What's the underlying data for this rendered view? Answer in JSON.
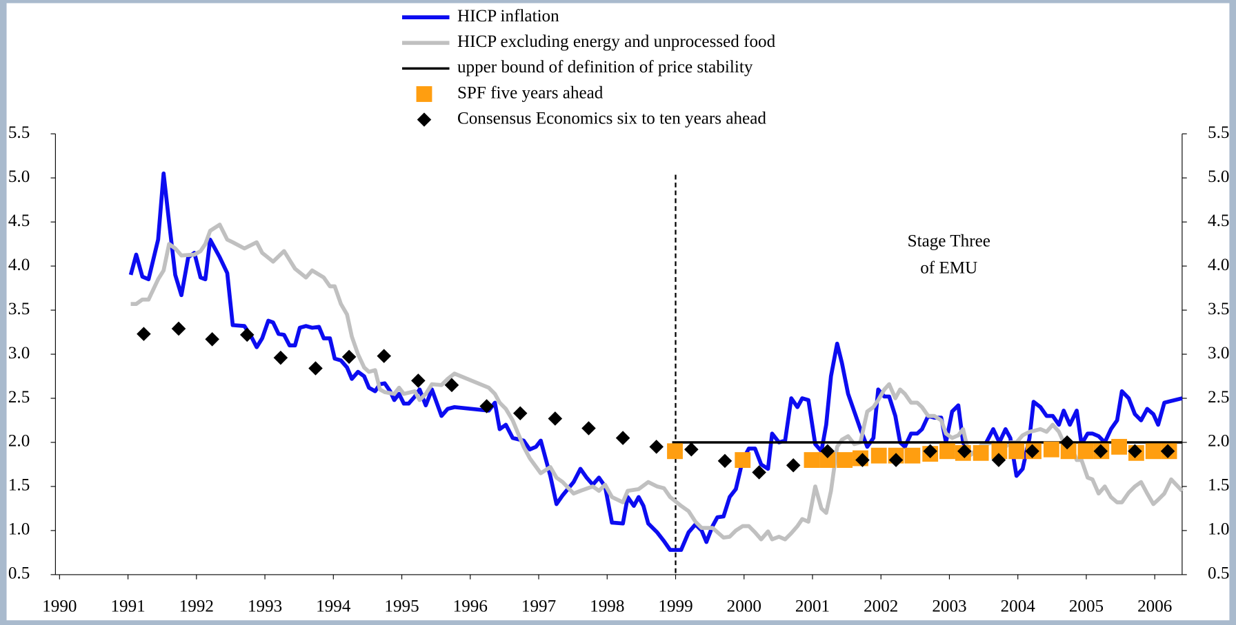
{
  "chart_data": {
    "type": "line",
    "xlim": [
      1989.94,
      2006.4
    ],
    "xticks": [
      1990,
      1991,
      1992,
      1993,
      1994,
      1995,
      1996,
      1997,
      1998,
      1999,
      2000,
      2001,
      2002,
      2003,
      2004,
      2005,
      2006
    ],
    "ylim": [
      0.5,
      5.5
    ],
    "yticks": [
      {
        "value": 0.5,
        "label": "0.5"
      },
      {
        "value": 1,
        "label": "1.0"
      },
      {
        "value": 1.5,
        "label": "1.5"
      },
      {
        "value": 2,
        "label": "2.0"
      },
      {
        "value": 2.5,
        "label": "2.5"
      },
      {
        "value": 3,
        "label": "3.0"
      },
      {
        "value": 3.5,
        "label": "3.5"
      },
      {
        "value": 4,
        "label": "4.0"
      },
      {
        "value": 4.5,
        "label": "4.5"
      },
      {
        "value": 5,
        "label": "5.0"
      },
      {
        "value": 5.5,
        "label": "5.5"
      }
    ],
    "y2lim": [
      0.5,
      5.5
    ],
    "y2ticks": [
      {
        "value": 0.5,
        "label": "0.5"
      },
      {
        "value": 1,
        "label": "1.0"
      },
      {
        "value": 1.5,
        "label": "1.5"
      },
      {
        "value": 2,
        "label": "2.0"
      },
      {
        "value": 2.5,
        "label": "2.5"
      },
      {
        "value": 3,
        "label": "3.0"
      },
      {
        "value": 3.5,
        "label": "3.5"
      },
      {
        "value": 4,
        "label": "4.0"
      },
      {
        "value": 4.5,
        "label": "4.5"
      },
      {
        "value": 5,
        "label": "5.0"
      },
      {
        "value": 5.5,
        "label": "5.5"
      }
    ],
    "vline": 1999,
    "annotation": [
      "Stage Three",
      "of EMU"
    ],
    "legend": "top",
    "series": [
      {
        "name": "HICP inflation",
        "kind": "line",
        "color": "#0c0cf0",
        "width": 5,
        "x": [
          1991.04,
          1991.12,
          1991.21,
          1991.3,
          1991.44,
          1991.52,
          1991.6,
          1991.69,
          1991.78,
          1991.88,
          1991.97,
          1992.06,
          1992.13,
          1992.2,
          1992.34,
          1992.45,
          1992.53,
          1992.7,
          1992.8,
          1992.88,
          1992.96,
          1993.05,
          1993.12,
          1993.2,
          1993.28,
          1993.36,
          1993.44,
          1993.51,
          1993.6,
          1993.69,
          1993.79,
          1993.86,
          1993.95,
          1994.02,
          1994.11,
          1994.2,
          1994.27,
          1994.36,
          1994.45,
          1994.52,
          1994.61,
          1994.68,
          1994.75,
          1994.83,
          1994.89,
          1994.96,
          1995.03,
          1995.1,
          1995.19,
          1995.26,
          1995.35,
          1995.44,
          1995.58,
          1995.67,
          1995.77,
          1996.27,
          1996.36,
          1996.43,
          1996.52,
          1996.62,
          1996.78,
          1996.87,
          1996.96,
          1997.03,
          1997.17,
          1997.26,
          1997.35,
          1997.51,
          1997.61,
          1997.7,
          1997.79,
          1997.88,
          1997.97,
          1998.07,
          1998.23,
          1998.3,
          1998.39,
          1998.46,
          1998.53,
          1998.6,
          1998.73,
          1998.83,
          1998.92,
          1999.08,
          1999.19,
          1999.29,
          1999.38,
          1999.45,
          1999.54,
          1999.61,
          1999.7,
          1999.79,
          1999.88,
          1999.98,
          2000.07,
          2000.16,
          2000.25,
          2000.35,
          2000.41,
          2000.51,
          2000.6,
          2000.69,
          2000.78,
          2000.85,
          2000.94,
          2001.04,
          2001.13,
          2001.2,
          2001.27,
          2001.36,
          2001.43,
          2001.52,
          2001.61,
          2001.7,
          2001.8,
          2001.89,
          2001.96,
          2002.05,
          2002.12,
          2002.21,
          2002.28,
          2002.35,
          2002.44,
          2002.53,
          2002.6,
          2002.69,
          2002.78,
          2002.88,
          2002.95,
          2003.04,
          2003.13,
          2003.2,
          2003.29,
          2003.38,
          2003.48,
          2003.54,
          2003.64,
          2003.73,
          2003.82,
          2003.89,
          2003.98,
          2004.07,
          2004.17,
          2004.23,
          2004.33,
          2004.42,
          2004.51,
          2004.6,
          2004.67,
          2004.76,
          2004.86,
          2004.93,
          2005.02,
          2005.09,
          2005.18,
          2005.27,
          2005.36,
          2005.45,
          2005.52,
          2005.62,
          2005.71,
          2005.8,
          2005.89,
          2005.98,
          2006.05,
          2006.14,
          2006.24,
          2006.4
        ],
        "values": [
          3.9,
          4.13,
          3.88,
          3.85,
          4.3,
          5.05,
          4.5,
          3.9,
          3.67,
          4.1,
          4.15,
          3.87,
          3.85,
          4.3,
          4.1,
          3.92,
          3.33,
          3.32,
          3.2,
          3.08,
          3.18,
          3.38,
          3.36,
          3.23,
          3.22,
          3.1,
          3.1,
          3.3,
          3.32,
          3.3,
          3.31,
          3.18,
          3.18,
          2.95,
          2.93,
          2.85,
          2.72,
          2.8,
          2.75,
          2.62,
          2.58,
          2.66,
          2.67,
          2.58,
          2.48,
          2.55,
          2.44,
          2.44,
          2.52,
          2.6,
          2.42,
          2.6,
          2.3,
          2.38,
          2.4,
          2.36,
          2.45,
          2.15,
          2.2,
          2.05,
          2.02,
          1.92,
          1.95,
          2.02,
          1.62,
          1.3,
          1.4,
          1.55,
          1.7,
          1.6,
          1.52,
          1.6,
          1.5,
          1.09,
          1.08,
          1.38,
          1.28,
          1.38,
          1.28,
          1.08,
          0.98,
          0.88,
          0.78,
          0.78,
          0.98,
          1.07,
          1.0,
          0.87,
          1.05,
          1.15,
          1.16,
          1.38,
          1.47,
          1.8,
          1.93,
          1.93,
          1.75,
          1.7,
          2.1,
          2.0,
          2.02,
          2.5,
          2.4,
          2.5,
          2.48,
          1.98,
          1.9,
          2.2,
          2.75,
          3.12,
          2.9,
          2.55,
          2.35,
          2.15,
          1.95,
          2.05,
          2.6,
          2.52,
          2.52,
          2.3,
          2.0,
          1.95,
          2.1,
          2.1,
          2.15,
          2.3,
          2.28,
          2.28,
          2.0,
          2.35,
          2.42,
          2.0,
          1.85,
          1.9,
          1.9,
          2.0,
          2.15,
          2.0,
          2.15,
          2.05,
          1.62,
          1.7,
          2.05,
          2.46,
          2.4,
          2.3,
          2.3,
          2.2,
          2.36,
          2.2,
          2.36,
          1.98,
          2.1,
          2.1,
          2.07,
          2.0,
          2.15,
          2.25,
          2.58,
          2.5,
          2.32,
          2.25,
          2.38,
          2.32,
          2.2,
          2.45,
          2.47,
          2.5
        ]
      },
      {
        "name": "HICP excluding energy and unprocessed food",
        "kind": "line",
        "color": "#c0c0c0",
        "width": 5,
        "x": [
          1991.04,
          1991.12,
          1991.21,
          1991.3,
          1991.44,
          1991.52,
          1991.6,
          1991.69,
          1991.78,
          1991.97,
          1992.06,
          1992.13,
          1992.2,
          1992.34,
          1992.45,
          1992.53,
          1992.7,
          1992.88,
          1992.96,
          1993.12,
          1993.28,
          1993.44,
          1993.6,
          1993.69,
          1993.86,
          1993.95,
          1994.02,
          1994.11,
          1994.2,
          1994.27,
          1994.36,
          1994.45,
          1994.52,
          1994.61,
          1994.68,
          1994.75,
          1994.89,
          1994.96,
          1995.03,
          1995.19,
          1995.26,
          1995.35,
          1995.44,
          1995.58,
          1995.67,
          1995.77,
          1996.27,
          1996.36,
          1996.43,
          1996.52,
          1996.62,
          1996.78,
          1996.87,
          1997.03,
          1997.17,
          1997.26,
          1997.35,
          1997.51,
          1997.61,
          1997.79,
          1997.88,
          1997.97,
          1998.07,
          1998.23,
          1998.3,
          1998.46,
          1998.6,
          1998.73,
          1998.83,
          1998.92,
          1999.08,
          1999.19,
          1999.29,
          1999.38,
          1999.54,
          1999.7,
          1999.79,
          1999.88,
          1999.98,
          2000.07,
          2000.16,
          2000.25,
          2000.35,
          2000.41,
          2000.51,
          2000.6,
          2000.69,
          2000.78,
          2000.85,
          2000.94,
          2001.04,
          2001.13,
          2001.2,
          2001.27,
          2001.36,
          2001.43,
          2001.52,
          2001.61,
          2001.7,
          2001.8,
          2001.89,
          2001.96,
          2002.05,
          2002.12,
          2002.21,
          2002.28,
          2002.35,
          2002.44,
          2002.53,
          2002.6,
          2002.69,
          2002.78,
          2002.88,
          2002.95,
          2003.04,
          2003.13,
          2003.2,
          2003.29,
          2003.38,
          2003.48,
          2003.54,
          2003.64,
          2003.73,
          2003.82,
          2003.89,
          2003.98,
          2004.07,
          2004.17,
          2004.23,
          2004.33,
          2004.42,
          2004.51,
          2004.6,
          2004.67,
          2004.76,
          2004.86,
          2004.93,
          2005.02,
          2005.09,
          2005.18,
          2005.27,
          2005.36,
          2005.45,
          2005.52,
          2005.62,
          2005.71,
          2005.8,
          2005.89,
          2005.98,
          2006.05,
          2006.14,
          2006.24,
          2006.4
        ],
        "values": [
          3.57,
          3.57,
          3.62,
          3.62,
          3.85,
          3.95,
          4.25,
          4.2,
          4.12,
          4.13,
          4.17,
          4.25,
          4.4,
          4.47,
          4.3,
          4.27,
          4.2,
          4.27,
          4.15,
          4.05,
          4.17,
          3.97,
          3.87,
          3.95,
          3.87,
          3.77,
          3.77,
          3.57,
          3.45,
          3.2,
          3.0,
          2.85,
          2.8,
          2.82,
          2.6,
          2.57,
          2.55,
          2.62,
          2.55,
          2.58,
          2.48,
          2.55,
          2.66,
          2.65,
          2.72,
          2.78,
          2.62,
          2.55,
          2.45,
          2.38,
          2.25,
          1.95,
          1.82,
          1.65,
          1.72,
          1.6,
          1.55,
          1.42,
          1.45,
          1.5,
          1.45,
          1.52,
          1.38,
          1.32,
          1.45,
          1.47,
          1.55,
          1.5,
          1.48,
          1.38,
          1.28,
          1.22,
          1.1,
          1.03,
          1.03,
          0.92,
          0.93,
          1.0,
          1.05,
          1.05,
          0.98,
          0.9,
          0.99,
          0.9,
          0.93,
          0.9,
          0.97,
          1.05,
          1.13,
          1.1,
          1.5,
          1.25,
          1.2,
          1.45,
          1.95,
          2.03,
          2.07,
          1.98,
          2.0,
          2.35,
          2.4,
          2.48,
          2.6,
          2.66,
          2.5,
          2.6,
          2.55,
          2.45,
          2.45,
          2.4,
          2.3,
          2.3,
          2.25,
          2.1,
          2.05,
          2.08,
          2.15,
          1.85,
          1.9,
          1.98,
          1.98,
          2.0,
          1.97,
          1.95,
          2.0,
          2.0,
          2.08,
          2.12,
          2.13,
          2.15,
          2.12,
          2.2,
          2.12,
          2.0,
          2.0,
          1.8,
          1.8,
          1.6,
          1.58,
          1.42,
          1.5,
          1.38,
          1.32,
          1.32,
          1.43,
          1.5,
          1.55,
          1.42,
          1.3,
          1.35,
          1.42,
          1.58,
          1.45
        ]
      },
      {
        "name": "upper bound of definition of price stability",
        "kind": "line",
        "color": "#000000",
        "width": 3,
        "x": [
          1998.95,
          2006.4
        ],
        "values": [
          2,
          2
        ]
      },
      {
        "name": "SPF five years ahead",
        "kind": "scatter",
        "marker": "square",
        "color": "#ff9e10",
        "x": [
          1998.99,
          1999.98,
          2000.99,
          2001.22,
          2001.47,
          2001.7,
          2001.97,
          2002.22,
          2002.46,
          2002.72,
          2002.97,
          2003.2,
          2003.46,
          2003.73,
          2003.98,
          2004.23,
          2004.49,
          2004.74,
          2004.99,
          2005.22,
          2005.48,
          2005.73,
          2005.98,
          2006.21
        ],
        "values": [
          1.9,
          1.8,
          1.8,
          1.8,
          1.8,
          1.82,
          1.85,
          1.85,
          1.85,
          1.87,
          1.9,
          1.88,
          1.88,
          1.9,
          1.9,
          1.9,
          1.92,
          1.9,
          1.9,
          1.9,
          1.95,
          1.88,
          1.9,
          1.9
        ]
      },
      {
        "name": "Consensus Economics six to ten years ahead",
        "kind": "scatter",
        "marker": "diamond",
        "color": "#000000",
        "x": [
          1991.23,
          1991.74,
          1992.23,
          1992.74,
          1993.23,
          1993.74,
          1994.23,
          1994.74,
          1995.24,
          1995.73,
          1996.24,
          1996.73,
          1997.24,
          1997.73,
          1998.23,
          1998.72,
          1999.23,
          1999.72,
          2000.22,
          2000.72,
          2001.22,
          2001.73,
          2002.22,
          2002.72,
          2003.22,
          2003.72,
          2004.21,
          2004.72,
          2005.21,
          2005.71,
          2006.19
        ],
        "values": [
          3.23,
          3.29,
          3.17,
          3.22,
          2.96,
          2.84,
          2.97,
          2.98,
          2.7,
          2.65,
          2.41,
          2.33,
          2.27,
          2.16,
          2.05,
          1.95,
          1.92,
          1.79,
          1.66,
          1.74,
          1.9,
          1.8,
          1.8,
          1.9,
          1.9,
          1.8,
          1.9,
          2.0,
          1.9,
          1.9,
          1.9
        ]
      }
    ]
  }
}
